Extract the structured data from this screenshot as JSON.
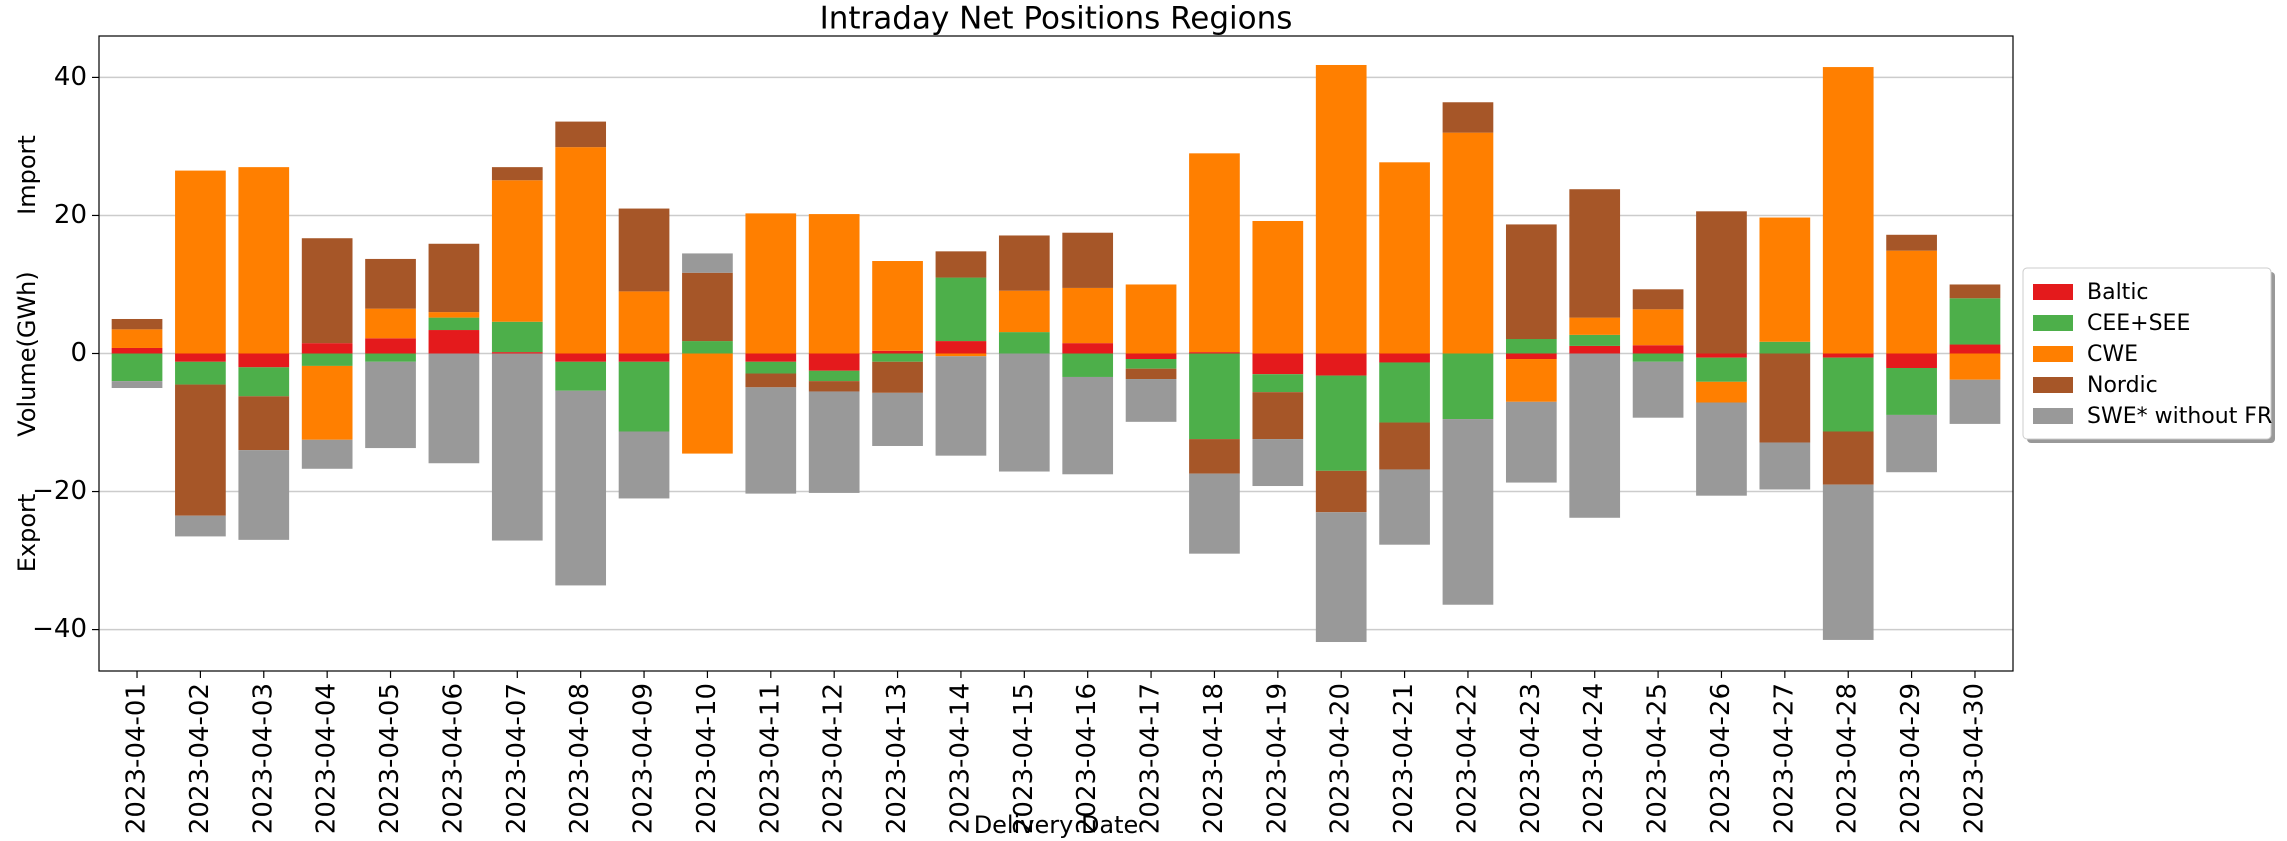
{
  "chart_data": {
    "type": "stacked-bar",
    "title": "Intraday Net Positions Regions",
    "x_label": "Delivery Date",
    "y_label": "Volume(GWh)",
    "annotations": [
      "Import",
      "Export"
    ],
    "categories": [
      "2023-04-01",
      "2023-04-02",
      "2023-04-03",
      "2023-04-04",
      "2023-04-05",
      "2023-04-06",
      "2023-04-07",
      "2023-04-08",
      "2023-04-09",
      "2023-04-10",
      "2023-04-11",
      "2023-04-12",
      "2023-04-13",
      "2023-04-14",
      "2023-04-15",
      "2023-04-16",
      "2023-04-17",
      "2023-04-18",
      "2023-04-19",
      "2023-04-20",
      "2023-04-21",
      "2023-04-22",
      "2023-04-23",
      "2023-04-24",
      "2023-04-25",
      "2023-04-26",
      "2023-04-27",
      "2023-04-28",
      "2023-04-29",
      "2023-04-30"
    ],
    "series": [
      {
        "name": "Baltic",
        "color": "#e41a1c",
        "values": [
          0.8,
          -1.2,
          -2,
          1.5,
          2.2,
          3.4,
          0.2,
          -1.2,
          -1.2,
          0,
          -1.2,
          -2.5,
          0.4,
          1.8,
          0,
          1.5,
          -0.8,
          0.2,
          -3,
          -3.2,
          -1.3,
          0,
          -0.8,
          1.1,
          1.2,
          -0.6,
          0,
          -0.6,
          -2.1,
          1.3
        ]
      },
      {
        "name": "CEE+SEE",
        "color": "#4daf4a",
        "values": [
          -4,
          -3.3,
          -4.2,
          -1.8,
          -1.2,
          1.8,
          4.4,
          -4.2,
          -10.1,
          1.8,
          -1.7,
          -1.5,
          -1.2,
          9.2,
          3.1,
          -3.4,
          -1.4,
          -12.4,
          -2.6,
          -13.8,
          -8.7,
          -9.5,
          2.1,
          1.6,
          -1.2,
          -3.5,
          1.7,
          -10.7,
          -6.8,
          6.7
        ]
      },
      {
        "name": "CWE",
        "color": "#ff7f00",
        "values": [
          2.7,
          26.5,
          27,
          -10.7,
          4.3,
          0.8,
          20.5,
          29.9,
          9,
          -14.5,
          20.3,
          20.2,
          13,
          -0.4,
          6,
          8,
          10,
          28.8,
          19.2,
          41.8,
          27.7,
          32,
          -6.2,
          2.5,
          5.2,
          -3,
          18,
          41.5,
          14.9,
          -3.8
        ]
      },
      {
        "name": "Nordic",
        "color": "#a65628",
        "values": [
          1.5,
          -19,
          -7.8,
          15.2,
          7.2,
          9.9,
          1.9,
          3.7,
          12,
          9.9,
          -2,
          -1.5,
          -4.5,
          3.8,
          8,
          8,
          -1.5,
          -5,
          -6.8,
          -6,
          -6.8,
          4.4,
          16.6,
          18.6,
          2.9,
          20.6,
          -12.9,
          -7.7,
          2.3,
          2
        ]
      },
      {
        "name": "SWE* without FR",
        "color": "#999999",
        "values": [
          -1,
          -3,
          -13,
          -4.2,
          -12.5,
          -15.9,
          -27.1,
          -28.2,
          -9.7,
          2.8,
          -15.4,
          -14.7,
          -7.7,
          -14.4,
          -17.1,
          -14.1,
          -6.2,
          -11.6,
          -6.8,
          -18.8,
          -10.9,
          -26.9,
          -11.7,
          -23.8,
          -8.1,
          -13.5,
          -6.8,
          -22.5,
          -8.3,
          -6.4
        ]
      }
    ],
    "ylim": [
      -46,
      46
    ],
    "yticks": [
      {
        "value": -40,
        "label": "−40"
      },
      {
        "value": -20,
        "label": "−20"
      },
      0,
      20,
      40
    ],
    "grid": true,
    "legend": "center right outside"
  }
}
